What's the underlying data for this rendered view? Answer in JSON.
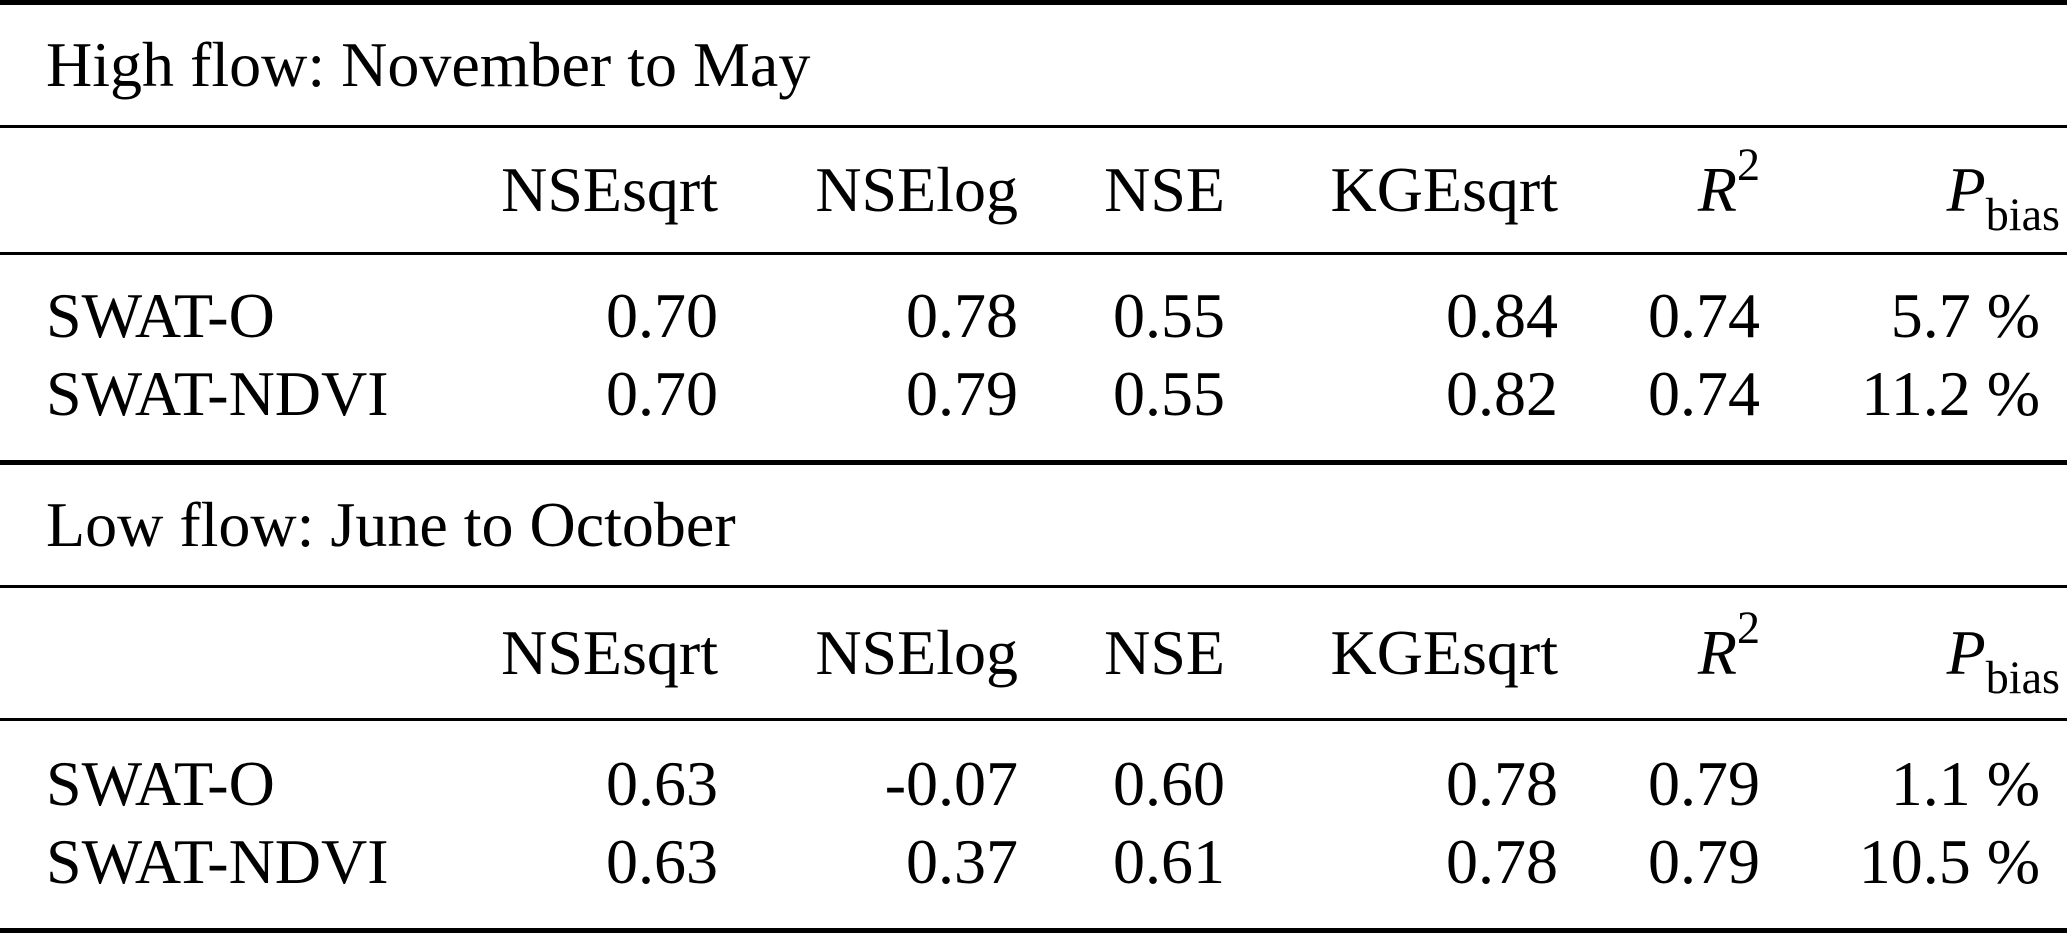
{
  "table": {
    "header": {
      "nse_sqrt": "NSEsqrt",
      "nse_log": "NSElog",
      "nse": "NSE",
      "kge_sqrt": "KGEsqrt",
      "r2_base": "R",
      "r2_sup": "2",
      "pbias_base": "P",
      "pbias_sub": "bias"
    },
    "sections": [
      {
        "title": "High flow: November to May",
        "rows": [
          {
            "label": "SWAT-O",
            "values": [
              "0.70",
              "0.78",
              "0.55",
              "0.84",
              "0.74",
              "5.7 %"
            ]
          },
          {
            "label": "SWAT-NDVI",
            "values": [
              "0.70",
              "0.79",
              "0.55",
              "0.82",
              "0.74",
              "11.2 %"
            ]
          }
        ]
      },
      {
        "title": "Low flow: June to October",
        "rows": [
          {
            "label": "SWAT-O",
            "values": [
              "0.63",
              "-0.07",
              "0.60",
              "0.78",
              "0.79",
              "1.1 %"
            ]
          },
          {
            "label": "SWAT-NDVI",
            "values": [
              "0.63",
              "0.37",
              "0.61",
              "0.78",
              "0.79",
              "10.5 %"
            ]
          }
        ]
      }
    ],
    "colors": {
      "text": "#000000",
      "background": "#ffffff",
      "rule": "#000000"
    }
  }
}
